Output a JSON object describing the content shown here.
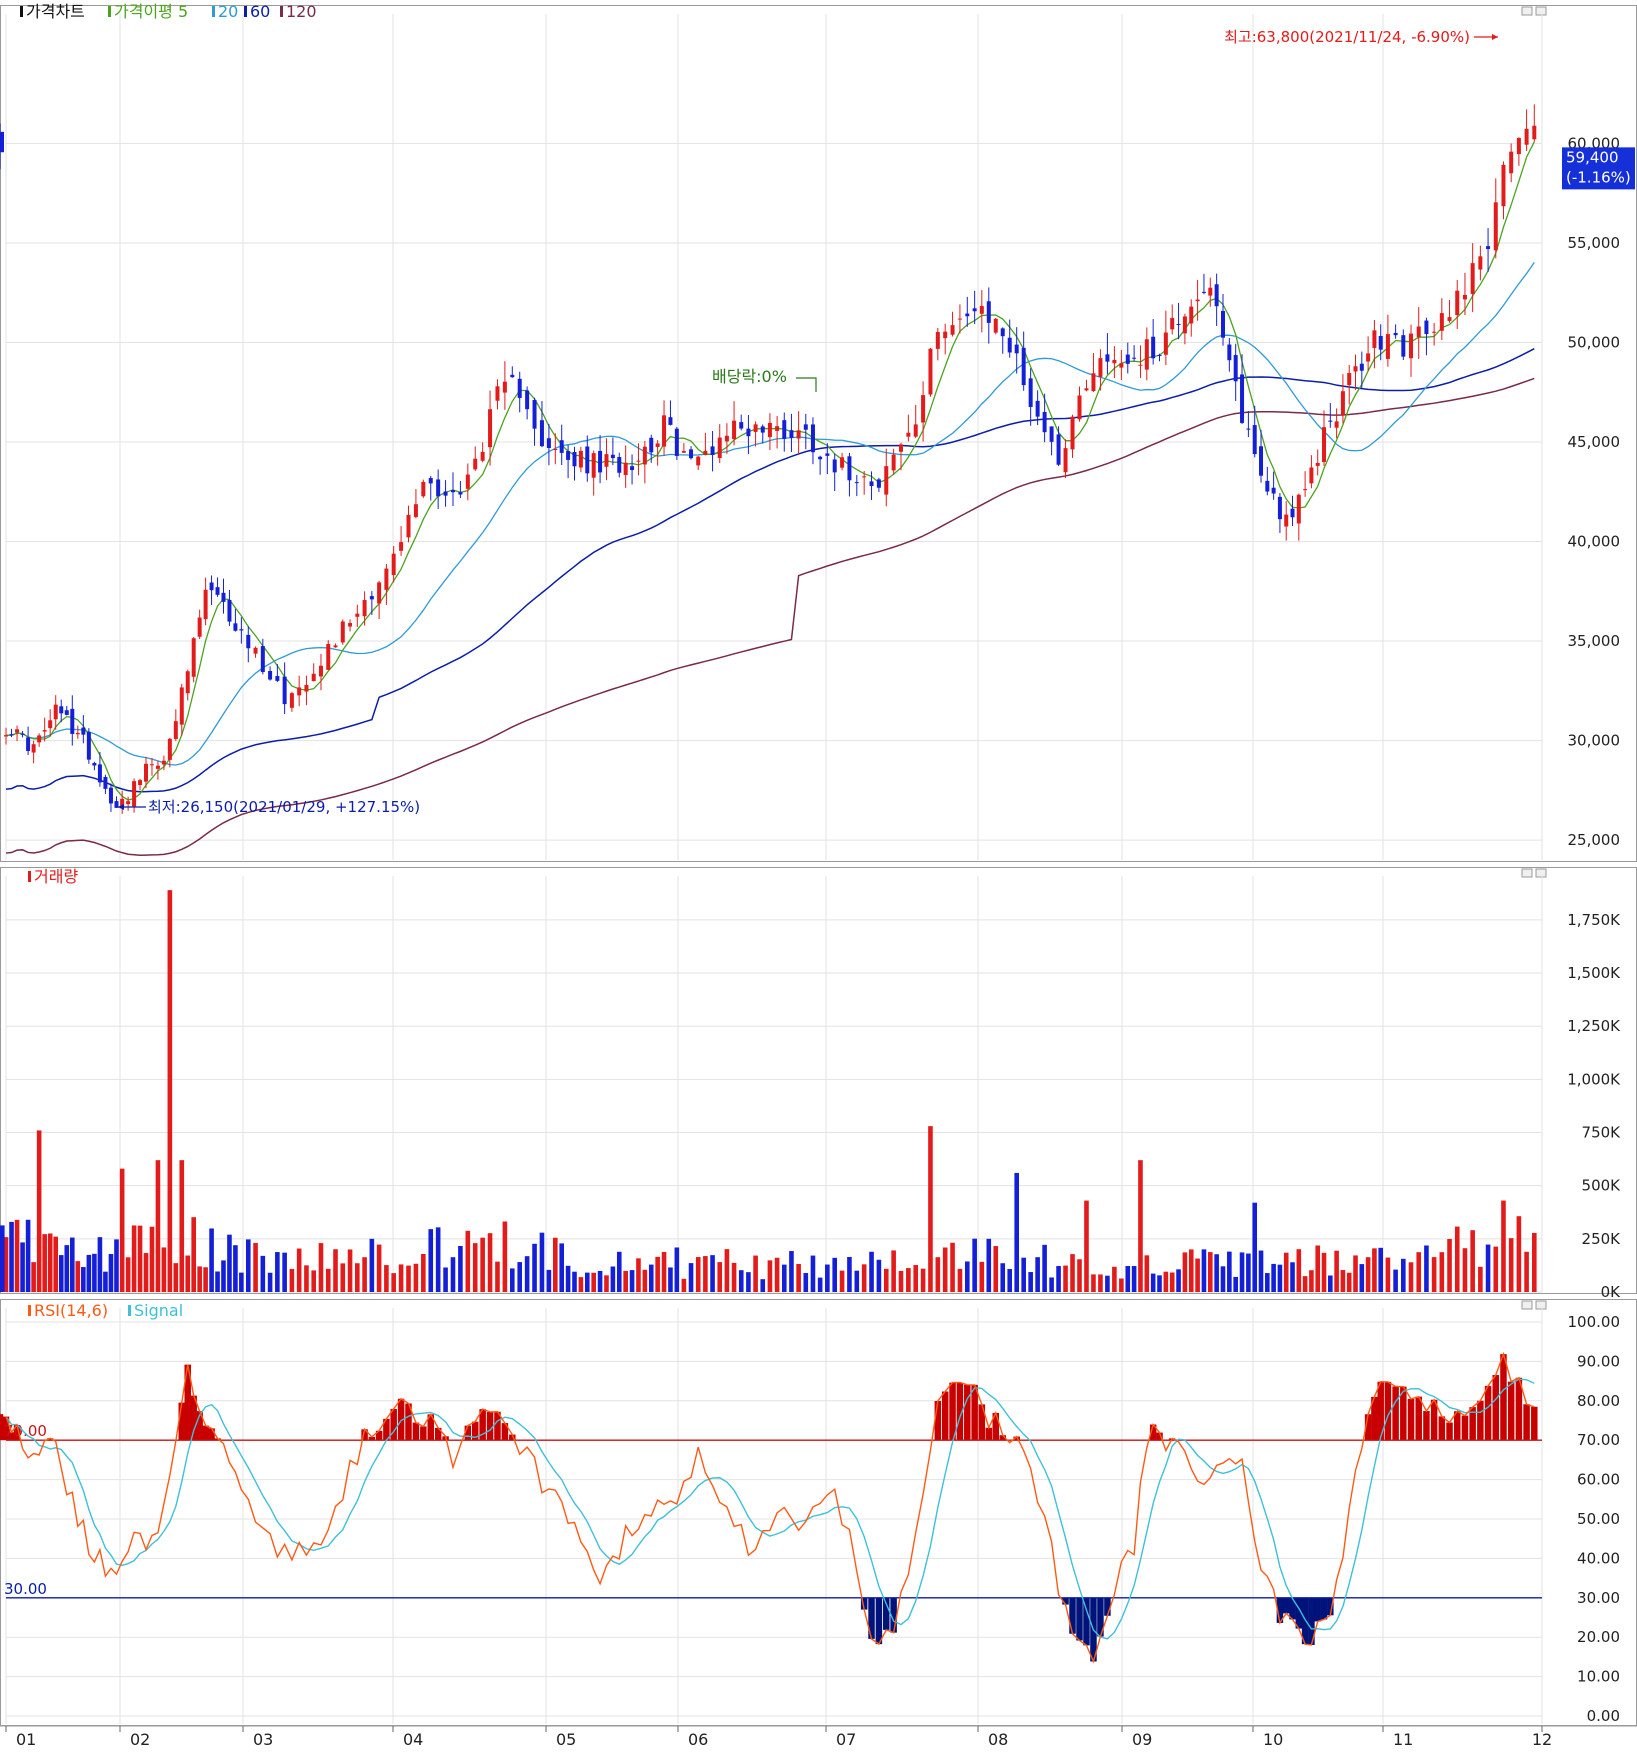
{
  "chart_data": [
    {
      "type": "candlestick",
      "title": "가격차트",
      "legend": [
        {
          "label": "가격차트",
          "color": "#111111"
        },
        {
          "label": "가격이평 5",
          "color": "#4ca31e"
        },
        {
          "label": "20",
          "color": "#2e9bd6"
        },
        {
          "label": "60",
          "color": "#0b1ea8"
        },
        {
          "label": "120",
          "color": "#7a2a4a"
        }
      ],
      "ylim": [
        24000,
        66000
      ],
      "yticks": [
        25000,
        30000,
        35000,
        40000,
        45000,
        50000,
        55000,
        60000
      ],
      "ytick_labels": [
        "25,000",
        "30,000",
        "35,000",
        "40,000",
        "45,000",
        "50,000",
        "55,000",
        "60,000"
      ],
      "last_price": "59,400",
      "last_change": "(-1.16%)",
      "high_annotation": "최고:63,800(2021/11/24, -6.90%)",
      "low_annotation": "최저:26,150(2021/01/29, +127.15%)",
      "dividend_annotation": "배당락:0%",
      "price_path": [
        {
          "m": 0.0,
          "p": 30700
        },
        {
          "m": 0.25,
          "p": 29600
        },
        {
          "m": 0.45,
          "p": 31600
        },
        {
          "m": 0.7,
          "p": 29800
        },
        {
          "m": 0.9,
          "p": 27200
        },
        {
          "m": 1.0,
          "p": 26800
        },
        {
          "m": 1.2,
          "p": 28400
        },
        {
          "m": 1.4,
          "p": 29600
        },
        {
          "m": 1.55,
          "p": 33500
        },
        {
          "m": 1.7,
          "p": 37600
        },
        {
          "m": 1.9,
          "p": 36200
        },
        {
          "m": 2.1,
          "p": 34200
        },
        {
          "m": 2.3,
          "p": 32000
        },
        {
          "m": 2.5,
          "p": 34000
        },
        {
          "m": 2.75,
          "p": 36500
        },
        {
          "m": 3.0,
          "p": 39000
        },
        {
          "m": 3.2,
          "p": 43000
        },
        {
          "m": 3.45,
          "p": 42300
        },
        {
          "m": 3.7,
          "p": 47500
        },
        {
          "m": 3.85,
          "p": 47800
        },
        {
          "m": 4.0,
          "p": 44500
        },
        {
          "m": 4.2,
          "p": 44000
        },
        {
          "m": 4.45,
          "p": 43800
        },
        {
          "m": 4.7,
          "p": 44300
        },
        {
          "m": 4.9,
          "p": 45800
        },
        {
          "m": 5.1,
          "p": 43800
        },
        {
          "m": 5.35,
          "p": 45800
        },
        {
          "m": 5.6,
          "p": 45700
        },
        {
          "m": 5.85,
          "p": 45500
        },
        {
          "m": 6.1,
          "p": 43700
        },
        {
          "m": 6.35,
          "p": 43200
        },
        {
          "m": 6.6,
          "p": 46000
        },
        {
          "m": 6.75,
          "p": 51200
        },
        {
          "m": 6.95,
          "p": 51300
        },
        {
          "m": 7.15,
          "p": 51000
        },
        {
          "m": 7.35,
          "p": 47500
        },
        {
          "m": 7.55,
          "p": 44100
        },
        {
          "m": 7.8,
          "p": 49000
        },
        {
          "m": 8.0,
          "p": 49200
        },
        {
          "m": 8.25,
          "p": 49600
        },
        {
          "m": 8.45,
          "p": 51500
        },
        {
          "m": 8.65,
          "p": 53000
        },
        {
          "m": 8.85,
          "p": 48000
        },
        {
          "m": 9.05,
          "p": 43500
        },
        {
          "m": 9.25,
          "p": 41200
        },
        {
          "m": 9.4,
          "p": 42200
        },
        {
          "m": 9.55,
          "p": 45500
        },
        {
          "m": 9.75,
          "p": 48000
        },
        {
          "m": 9.95,
          "p": 50200
        },
        {
          "m": 10.15,
          "p": 49900
        },
        {
          "m": 10.35,
          "p": 50800
        },
        {
          "m": 10.55,
          "p": 53600
        },
        {
          "m": 10.7,
          "p": 56000
        },
        {
          "m": 10.82,
          "p": 60800
        },
        {
          "m": 10.95,
          "p": 61200
        },
        {
          "m": 11.0,
          "p": 59400
        }
      ],
      "volume_path": [
        {
          "m": 0.0,
          "v": 260000
        },
        {
          "m": 0.3,
          "v": 210000
        },
        {
          "m": 0.75,
          "v": 170000
        },
        {
          "m": 1.2,
          "v": 220000
        },
        {
          "m": 1.6,
          "v": 230000
        },
        {
          "m": 2.2,
          "v": 150000
        },
        {
          "m": 3.0,
          "v": 180000
        },
        {
          "m": 3.6,
          "v": 230000
        },
        {
          "m": 4.3,
          "v": 150000
        },
        {
          "m": 5.2,
          "v": 135000
        },
        {
          "m": 6.0,
          "v": 120000
        },
        {
          "m": 6.7,
          "v": 200000
        },
        {
          "m": 7.4,
          "v": 150000
        },
        {
          "m": 8.2,
          "v": 130000
        },
        {
          "m": 9.0,
          "v": 135000
        },
        {
          "m": 9.6,
          "v": 145000
        },
        {
          "m": 10.3,
          "v": 165000
        },
        {
          "m": 10.8,
          "v": 270000
        },
        {
          "m": 11.0,
          "v": 210000
        }
      ],
      "volume_spikes": [
        {
          "m": 0.28,
          "v": 760000
        },
        {
          "m": 1.02,
          "v": 580000
        },
        {
          "m": 1.32,
          "v": 620000
        },
        {
          "m": 1.42,
          "v": 1890000
        },
        {
          "m": 1.48,
          "v": 620000
        },
        {
          "m": 6.71,
          "v": 780000
        },
        {
          "m": 7.25,
          "v": 560000
        },
        {
          "m": 7.75,
          "v": 430000
        },
        {
          "m": 8.12,
          "v": 620000
        },
        {
          "m": 9.0,
          "v": 420000
        },
        {
          "m": 10.75,
          "v": 430000
        }
      ]
    },
    {
      "type": "bar",
      "title": "거래량",
      "ylim": [
        0,
        1900000
      ],
      "yticks": [
        0,
        250000,
        500000,
        750000,
        1000000,
        1250000,
        1500000,
        1750000
      ],
      "ytick_labels": [
        "0K",
        "250K",
        "500K",
        "750K",
        "1,000K",
        "1,250K",
        "1,500K",
        "1,750K"
      ]
    },
    {
      "type": "line",
      "title": "RSI(14,6)",
      "legend": [
        {
          "label": "RSI(14,6)",
          "color": "#ff5a14"
        },
        {
          "label": "Signal",
          "color": "#3ec0d8"
        }
      ],
      "ylim": [
        0,
        100
      ],
      "yticks": [
        0,
        10,
        20,
        30,
        40,
        50,
        60,
        70,
        80,
        90,
        100
      ],
      "ytick_labels": [
        "0.00",
        "10.00",
        "20.00",
        "30.00",
        "40.00",
        "50.00",
        "60.00",
        "70.00",
        "80.00",
        "90.00",
        "100.00"
      ],
      "upper_line": 70,
      "lower_line": 30,
      "upper_label": "70.00",
      "lower_label": "30.00",
      "rsi_path": [
        {
          "m": 0.0,
          "r": 78
        },
        {
          "m": 0.2,
          "r": 64
        },
        {
          "m": 0.4,
          "r": 72
        },
        {
          "m": 0.6,
          "r": 52
        },
        {
          "m": 0.8,
          "r": 40
        },
        {
          "m": 0.9,
          "r": 35
        },
        {
          "m": 1.1,
          "r": 44
        },
        {
          "m": 1.3,
          "r": 42
        },
        {
          "m": 1.45,
          "r": 68
        },
        {
          "m": 1.55,
          "r": 88
        },
        {
          "m": 1.7,
          "r": 74
        },
        {
          "m": 1.85,
          "r": 70
        },
        {
          "m": 2.0,
          "r": 58
        },
        {
          "m": 2.2,
          "r": 43
        },
        {
          "m": 2.35,
          "r": 40
        },
        {
          "m": 2.55,
          "r": 45
        },
        {
          "m": 2.7,
          "r": 62
        },
        {
          "m": 2.85,
          "r": 74
        },
        {
          "m": 3.05,
          "r": 78
        },
        {
          "m": 3.2,
          "r": 76
        },
        {
          "m": 3.4,
          "r": 66
        },
        {
          "m": 3.55,
          "r": 75
        },
        {
          "m": 3.7,
          "r": 80
        },
        {
          "m": 3.85,
          "r": 68
        },
        {
          "m": 4.05,
          "r": 55
        },
        {
          "m": 4.25,
          "r": 46
        },
        {
          "m": 4.4,
          "r": 34
        },
        {
          "m": 4.6,
          "r": 45
        },
        {
          "m": 4.85,
          "r": 52
        },
        {
          "m": 5.05,
          "r": 59
        },
        {
          "m": 5.15,
          "r": 66
        },
        {
          "m": 5.3,
          "r": 56
        },
        {
          "m": 5.5,
          "r": 42
        },
        {
          "m": 5.65,
          "r": 52
        },
        {
          "m": 5.85,
          "r": 48
        },
        {
          "m": 6.05,
          "r": 55
        },
        {
          "m": 6.15,
          "r": 46
        },
        {
          "m": 6.25,
          "r": 24
        },
        {
          "m": 6.35,
          "r": 16
        },
        {
          "m": 6.45,
          "r": 23
        },
        {
          "m": 6.6,
          "r": 46
        },
        {
          "m": 6.75,
          "r": 80
        },
        {
          "m": 6.9,
          "r": 88
        },
        {
          "m": 7.05,
          "r": 76
        },
        {
          "m": 7.25,
          "r": 70
        },
        {
          "m": 7.4,
          "r": 60
        },
        {
          "m": 7.55,
          "r": 35
        },
        {
          "m": 7.7,
          "r": 20
        },
        {
          "m": 7.82,
          "r": 14
        },
        {
          "m": 7.95,
          "r": 32
        },
        {
          "m": 8.1,
          "r": 45
        },
        {
          "m": 8.2,
          "r": 72
        },
        {
          "m": 8.35,
          "r": 66
        },
        {
          "m": 8.45,
          "r": 70
        },
        {
          "m": 8.6,
          "r": 60
        },
        {
          "m": 8.75,
          "r": 62
        },
        {
          "m": 8.9,
          "r": 66
        },
        {
          "m": 9.05,
          "r": 38
        },
        {
          "m": 9.2,
          "r": 26
        },
        {
          "m": 9.35,
          "r": 22
        },
        {
          "m": 9.45,
          "r": 19
        },
        {
          "m": 9.6,
          "r": 26
        },
        {
          "m": 9.75,
          "r": 52
        },
        {
          "m": 9.9,
          "r": 80
        },
        {
          "m": 10.05,
          "r": 86
        },
        {
          "m": 10.2,
          "r": 79
        },
        {
          "m": 10.35,
          "r": 77
        },
        {
          "m": 10.5,
          "r": 76
        },
        {
          "m": 10.65,
          "r": 84
        },
        {
          "m": 10.78,
          "r": 90
        },
        {
          "m": 10.9,
          "r": 79
        },
        {
          "m": 11.0,
          "r": 76
        }
      ]
    }
  ],
  "x_axis": {
    "labels": [
      "01",
      "02",
      "03",
      "04",
      "05",
      "06",
      "07",
      "08",
      "09",
      "10",
      "11",
      "12"
    ]
  },
  "colors": {
    "up": "#e31b1b",
    "down": "#1420d8",
    "ma5": "#4ca31e",
    "ma20": "#2e9bd6",
    "ma60": "#0b1ea8",
    "ma120": "#7a2a4a",
    "rsi": "#ff5a14",
    "signal": "#3ec0d8",
    "grid": "#e3e3e3",
    "panel_border": "#9a9a9a",
    "fill_high": "#c80000",
    "fill_low": "#00137a"
  }
}
